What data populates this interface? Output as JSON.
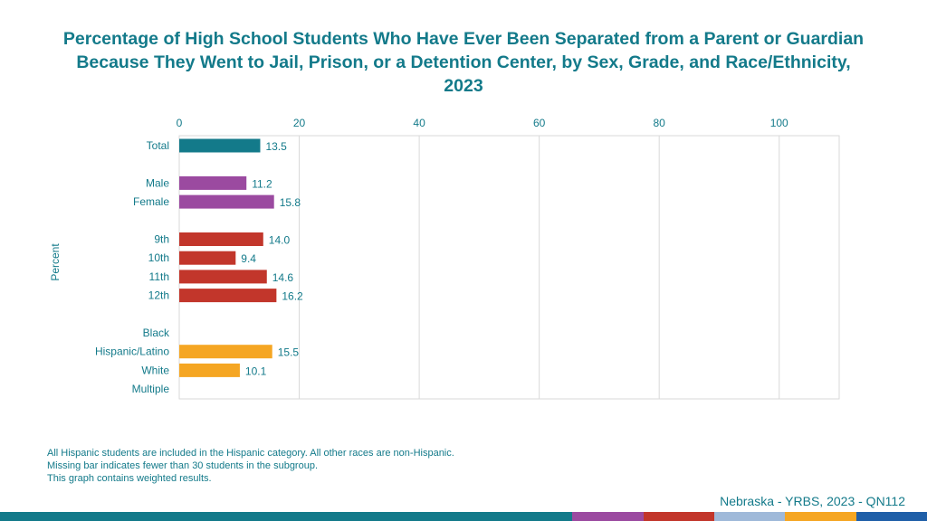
{
  "chart_data": {
    "type": "bar",
    "orientation": "horizontal",
    "title": "Percentage of High School Students Who Have Ever Been Separated from a Parent or Guardian Because They Went to Jail, Prison, or a Detention Center, by Sex, Grade, and Race/Ethnicity, 2023",
    "ylabel": "Percent",
    "xlim": [
      0,
      110
    ],
    "xticks": [
      0,
      20,
      40,
      60,
      80,
      100
    ],
    "grid": true,
    "bars": [
      {
        "label": "Total",
        "value": 13.5,
        "display": "13.5",
        "color": "#137a8a"
      },
      {
        "label": "",
        "value": null,
        "display": "",
        "color": ""
      },
      {
        "label": "Male",
        "value": 11.2,
        "display": "11.2",
        "color": "#9b4aa0"
      },
      {
        "label": "Female",
        "value": 15.8,
        "display": "15.8",
        "color": "#9b4aa0"
      },
      {
        "label": "",
        "value": null,
        "display": "",
        "color": ""
      },
      {
        "label": "9th",
        "value": 14.0,
        "display": "14.0",
        "color": "#c2362b"
      },
      {
        "label": "10th",
        "value": 9.4,
        "display": "9.4",
        "color": "#c2362b"
      },
      {
        "label": "11th",
        "value": 14.6,
        "display": "14.6",
        "color": "#c2362b"
      },
      {
        "label": "12th",
        "value": 16.2,
        "display": "16.2",
        "color": "#c2362b"
      },
      {
        "label": "",
        "value": null,
        "display": "",
        "color": ""
      },
      {
        "label": "Black",
        "value": null,
        "display": "",
        "color": "#f5a623"
      },
      {
        "label": "Hispanic/Latino",
        "value": 15.5,
        "display": "15.5",
        "color": "#f5a623"
      },
      {
        "label": "White",
        "value": 10.1,
        "display": "10.1",
        "color": "#f5a623"
      },
      {
        "label": "Multiple",
        "value": null,
        "display": "",
        "color": "#f5a623"
      }
    ]
  },
  "notes": [
    "All Hispanic students are included in the Hispanic category.  All other races are non-Hispanic.",
    "Missing bar indicates fewer than 30 students in the subgroup.",
    "This graph contains weighted results."
  ],
  "source": "Nebraska - YRBS, 2023 - QN112",
  "stripe_colors": [
    "#137a8a",
    "#9b4aa0",
    "#c2362b",
    "#9fb9d9",
    "#f5a623",
    "#1f5fa8"
  ]
}
